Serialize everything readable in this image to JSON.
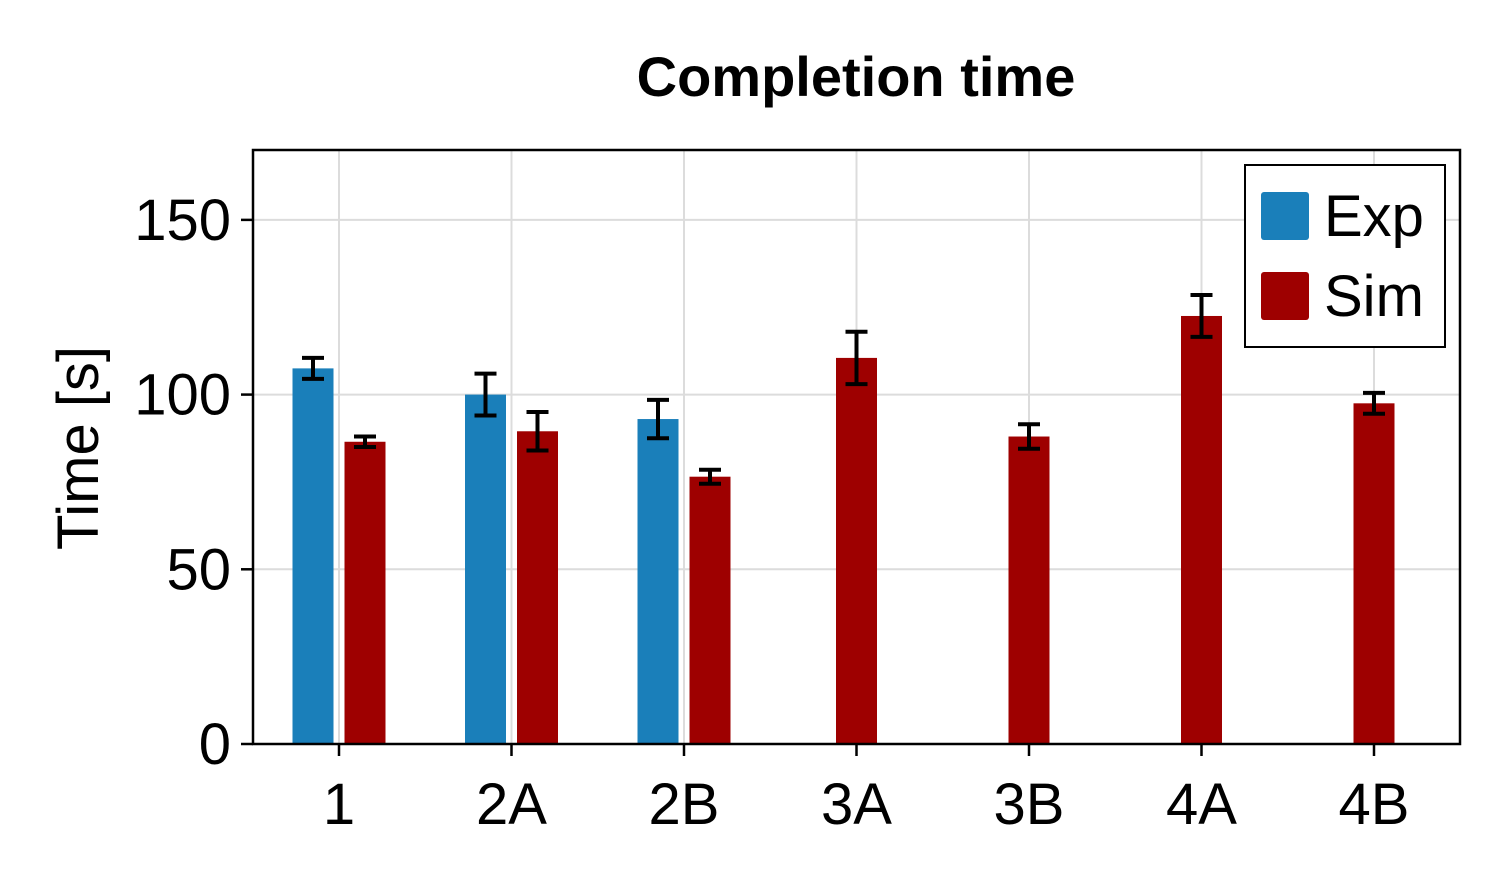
{
  "chart_data": {
    "type": "bar",
    "title": "Completion time",
    "xlabel": "",
    "ylabel": "Time [s]",
    "ylim": [
      0,
      170
    ],
    "yticks": [
      0,
      50,
      100,
      150
    ],
    "categories": [
      "1",
      "2A",
      "2B",
      "3A",
      "3B",
      "4A",
      "4B"
    ],
    "grid": true,
    "legend_position": "top-right",
    "series": [
      {
        "name": "Exp",
        "color": "#1a7fba",
        "values": [
          107.5,
          100,
          93,
          null,
          null,
          null,
          null
        ],
        "errors": [
          3,
          6,
          5.5,
          null,
          null,
          null,
          null
        ]
      },
      {
        "name": "Sim",
        "color": "#9e0000",
        "values": [
          86.5,
          89.5,
          76.5,
          110.5,
          88,
          122.5,
          97.5
        ],
        "errors": [
          1.5,
          5.5,
          2,
          7.5,
          3.5,
          6,
          3
        ]
      }
    ]
  }
}
